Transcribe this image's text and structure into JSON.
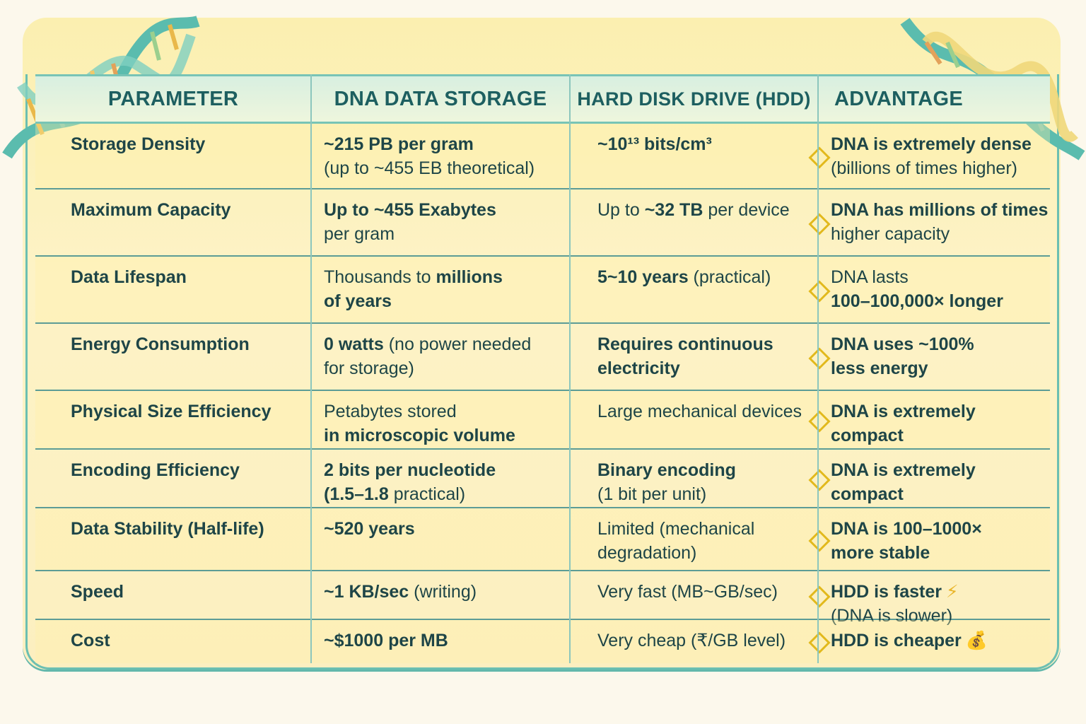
{
  "colors": {
    "accent": "#6bbfb2",
    "header_text": "#1d5f60",
    "body_text": "#1e4547",
    "marker": "#e2b91c"
  },
  "headers": [
    "PARAMETER",
    "DNA DATA STORAGE",
    "HARD DISK DRIVE (HDD)",
    "ADVANTAGE"
  ],
  "rows": [
    {
      "parameter": "Storage Density",
      "dna": [
        [
          {
            "t": "~215 PB per gram",
            "b": true
          }
        ],
        [
          {
            "t": "(up to ~455 EB theoretical)",
            "b": false
          }
        ]
      ],
      "hdd": [
        [
          {
            "t": "~10¹³ bits/cm³",
            "b": true
          }
        ]
      ],
      "advantage": [
        [
          {
            "t": "DNA is extremely dense",
            "b": true
          }
        ],
        [
          {
            "t": "(billions of times higher)",
            "b": false
          }
        ]
      ]
    },
    {
      "parameter": "Maximum Capacity",
      "dna": [
        [
          {
            "t": "Up to ~455 Exabytes",
            "b": true
          }
        ],
        [
          {
            "t": "per gram",
            "b": false
          }
        ]
      ],
      "hdd": [
        [
          {
            "t": "Up to ",
            "b": false
          },
          {
            "t": "~32 TB",
            "b": true
          },
          {
            "t": " per device",
            "b": false
          }
        ]
      ],
      "advantage": [
        [
          {
            "t": "DNA has millions of times",
            "b": true
          }
        ],
        [
          {
            "t": "higher capacity",
            "b": false
          }
        ]
      ]
    },
    {
      "parameter": "Data Lifespan",
      "dna": [
        [
          {
            "t": "Thousands to ",
            "b": false
          },
          {
            "t": "millions",
            "b": true
          }
        ],
        [
          {
            "t": "of years",
            "b": true
          }
        ]
      ],
      "hdd": [
        [
          {
            "t": "5~10 years",
            "b": true
          },
          {
            "t": " (practical)",
            "b": false
          }
        ]
      ],
      "advantage": [
        [
          {
            "t": "DNA lasts",
            "b": false
          }
        ],
        [
          {
            "t": "100–100,000× longer",
            "b": true
          }
        ]
      ]
    },
    {
      "parameter": "Energy Consumption",
      "dna": [
        [
          {
            "t": "0 watts",
            "b": true
          },
          {
            "t": " (no power needed",
            "b": false
          }
        ],
        [
          {
            "t": "for storage)",
            "b": false
          }
        ]
      ],
      "hdd": [
        [
          {
            "t": "Requires continuous",
            "b": true
          }
        ],
        [
          {
            "t": "electricity",
            "b": true
          }
        ]
      ],
      "advantage": [
        [
          {
            "t": "DNA uses ~100%",
            "b": true
          }
        ],
        [
          {
            "t": "less energy",
            "b": true
          }
        ]
      ]
    },
    {
      "parameter": "Physical Size Efficiency",
      "dna": [
        [
          {
            "t": "Petabytes stored",
            "b": false
          }
        ],
        [
          {
            "t": "in microscopic volume",
            "b": true
          }
        ]
      ],
      "hdd": [
        [
          {
            "t": "Large mechanical devices",
            "b": false
          }
        ]
      ],
      "advantage": [
        [
          {
            "t": "DNA is extremely compact",
            "b": true
          }
        ]
      ]
    },
    {
      "parameter": "Encoding Efficiency",
      "dna": [
        [
          {
            "t": "2 bits per nucleotide",
            "b": true
          }
        ],
        [
          {
            "t": "(1.5–1.8",
            "b": true
          },
          {
            "t": " practical)",
            "b": false
          }
        ]
      ],
      "hdd": [
        [
          {
            "t": "Binary encoding",
            "b": true
          }
        ],
        [
          {
            "t": "(1 bit per unit)",
            "b": false
          }
        ]
      ],
      "advantage": [
        [
          {
            "t": "DNA is extremely compact",
            "b": true
          }
        ]
      ]
    },
    {
      "parameter": "Data Stability (Half-life)",
      "dna": [
        [
          {
            "t": "~520 years",
            "b": true
          }
        ]
      ],
      "hdd": [
        [
          {
            "t": "Limited (mechanical",
            "b": false
          }
        ],
        [
          {
            "t": "degradation)",
            "b": false
          }
        ]
      ],
      "advantage": [
        [
          {
            "t": "DNA is 100–1000×",
            "b": true
          }
        ],
        [
          {
            "t": "more stable",
            "b": true
          }
        ]
      ]
    },
    {
      "parameter": "Speed",
      "dna": [
        [
          {
            "t": "~1 KB/sec",
            "b": true
          },
          {
            "t": " (writing)",
            "b": false
          }
        ]
      ],
      "hdd": [
        [
          {
            "t": "Very fast (MB~GB/sec)",
            "b": false
          }
        ]
      ],
      "advantage": [
        [
          {
            "t": "HDD is faster",
            "b": true
          }
        ],
        [
          {
            "t": "(DNA is slower)",
            "b": false
          }
        ]
      ],
      "icon": "lightning-icon"
    },
    {
      "parameter": "Cost",
      "dna": [
        [
          {
            "t": "~$1000 per MB",
            "b": true
          }
        ]
      ],
      "hdd": [
        [
          {
            "t": "Very cheap (₹/GB level)",
            "b": false
          }
        ]
      ],
      "advantage": [
        [
          {
            "t": "HDD is cheaper",
            "b": true
          }
        ]
      ],
      "icon": "money-bag-icon"
    }
  ]
}
